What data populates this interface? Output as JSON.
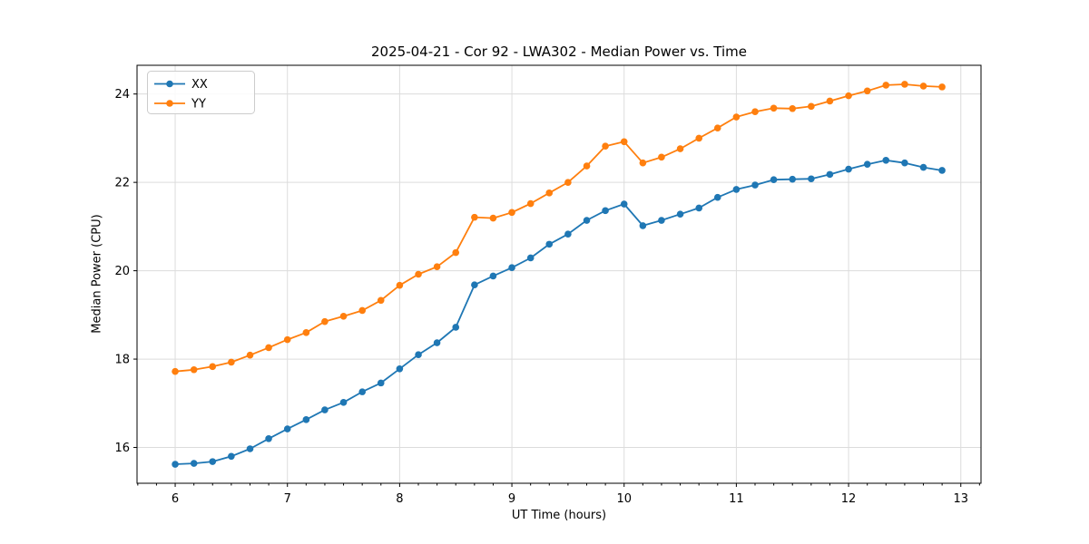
{
  "chart_data": {
    "type": "line",
    "title": "2025-04-21 - Cor 92 - LWA302 - Median Power vs. Time",
    "xlabel": "UT Time (hours)",
    "ylabel": "Median Power (CPU)",
    "grid": true,
    "legend_position": "upper left",
    "xlim": [
      5.66,
      13.18
    ],
    "ylim": [
      15.19,
      24.65
    ],
    "xticks": [
      6,
      7,
      8,
      9,
      10,
      11,
      12,
      13
    ],
    "yticks": [
      16,
      18,
      20,
      22,
      24
    ],
    "x_minor_tick_step": 0.1667,
    "x": [
      6.0,
      6.167,
      6.333,
      6.5,
      6.667,
      6.833,
      7.0,
      7.167,
      7.333,
      7.5,
      7.667,
      7.833,
      8.0,
      8.167,
      8.333,
      8.5,
      8.667,
      8.833,
      9.0,
      9.167,
      9.333,
      9.5,
      9.667,
      9.833,
      10.0,
      10.167,
      10.333,
      10.5,
      10.667,
      10.833,
      11.0,
      11.167,
      11.333,
      11.5,
      11.667,
      11.833,
      12.0,
      12.167,
      12.333,
      12.5,
      12.667,
      12.833
    ],
    "series": [
      {
        "name": "XX",
        "color": "#1f77b4",
        "values": [
          15.62,
          15.64,
          15.68,
          15.8,
          15.97,
          16.2,
          16.42,
          16.63,
          16.85,
          17.02,
          17.26,
          17.46,
          17.78,
          18.1,
          18.37,
          18.72,
          19.68,
          19.88,
          20.07,
          20.29,
          20.6,
          20.83,
          21.14,
          21.36,
          21.51,
          21.02,
          21.14,
          21.28,
          21.42,
          21.66,
          21.84,
          21.94,
          22.06,
          22.07,
          22.08,
          22.18,
          22.3,
          22.41,
          22.5,
          22.44,
          22.34,
          22.27
        ]
      },
      {
        "name": "YY",
        "color": "#ff7f0e",
        "values": [
          17.72,
          17.76,
          17.83,
          17.93,
          18.09,
          18.26,
          18.44,
          18.6,
          18.85,
          18.97,
          19.1,
          19.33,
          19.67,
          19.92,
          20.09,
          20.41,
          21.21,
          21.19,
          21.32,
          21.52,
          21.76,
          22.0,
          22.37,
          22.82,
          22.92,
          22.44,
          22.57,
          22.76,
          23.0,
          23.23,
          23.48,
          23.6,
          23.68,
          23.67,
          23.72,
          23.84,
          23.96,
          24.07,
          24.2,
          24.22,
          24.18,
          24.16
        ]
      }
    ],
    "style": {
      "grid_color": "#dcdcdc",
      "spine_color": "#000000",
      "background": "#ffffff",
      "legend_edge": "#cccccc",
      "marker_radius": 3.8,
      "line_width": 1.8
    }
  }
}
